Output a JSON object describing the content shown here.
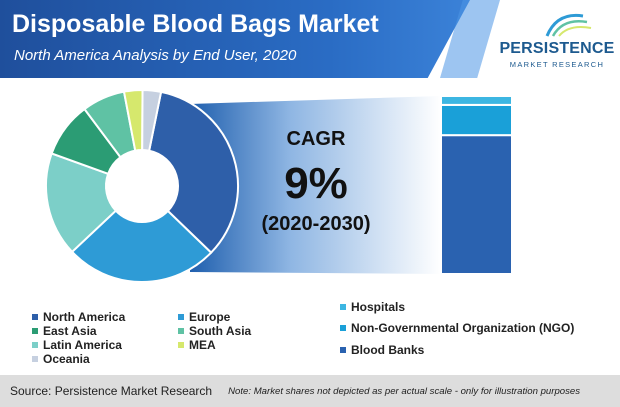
{
  "header": {
    "title": "Disposable Blood Bags Market",
    "subtitle": "North America Analysis by End User, 2020"
  },
  "logo": {
    "name": "PERSISTENCE",
    "sub": "MARKET RESEARCH"
  },
  "cagr": {
    "label": "CAGR",
    "value": "9%",
    "period": "(2020-2030)"
  },
  "colors": {
    "north_america": "#2e5fa9",
    "europe": "#2e9bd6",
    "east_asia": "#2b9c74",
    "south_asia": "#5fc2a4",
    "latin_america": "#7ccfc8",
    "mea": "#d6e86d",
    "oceania": "#c6d0e0",
    "hospitals": "#3cb6e2",
    "ngo": "#1aa0d8",
    "blood_banks": "#2a62b0"
  },
  "chart_data": [
    {
      "type": "pie",
      "variant": "donut",
      "labels": [
        "North America",
        "Europe",
        "East Asia",
        "South Asia",
        "Latin America",
        "MEA",
        "Oceania"
      ],
      "values": [
        33,
        25,
        17,
        9,
        7,
        3,
        3
      ],
      "colors": [
        "#2e5fa9",
        "#2e9bd6",
        "#7ccfc8",
        "#2b9c74",
        "#5fc2a4",
        "#d6e86d",
        "#c6d0e0"
      ],
      "title": ""
    },
    {
      "type": "bar",
      "variant": "stacked-100",
      "categories": [
        ""
      ],
      "series": [
        {
          "name": "Blood Banks",
          "values": [
            78
          ]
        },
        {
          "name": "Non-Governmental Organization (NGO)",
          "values": [
            17
          ]
        },
        {
          "name": "Hospitals",
          "values": [
            5
          ]
        }
      ],
      "colors": [
        "#2a62b0",
        "#1aa0d8",
        "#3cb6e2"
      ],
      "ylim": [
        0,
        100
      ]
    }
  ],
  "legend_left": [
    {
      "label": "North America",
      "color": "#2e5fa9"
    },
    {
      "label": "Europe",
      "color": "#2e9bd6"
    },
    {
      "label": "East Asia",
      "color": "#2b9c74"
    },
    {
      "label": "South Asia",
      "color": "#5fc2a4"
    },
    {
      "label": "Latin America",
      "color": "#7ccfc8"
    },
    {
      "label": "MEA",
      "color": "#d6e86d"
    },
    {
      "label": "Oceania",
      "color": "#c6d0e0"
    }
  ],
  "legend_right": [
    {
      "label": "Hospitals",
      "color": "#3cb6e2"
    },
    {
      "label": "Non-Governmental Organization (NGO)",
      "color": "#1aa0d8"
    },
    {
      "label": "Blood Banks",
      "color": "#2a62b0"
    }
  ],
  "footer": {
    "source": "Source: Persistence Market Research",
    "note": "Note: Market shares not depicted as per actual scale - only for illustration purposes"
  }
}
